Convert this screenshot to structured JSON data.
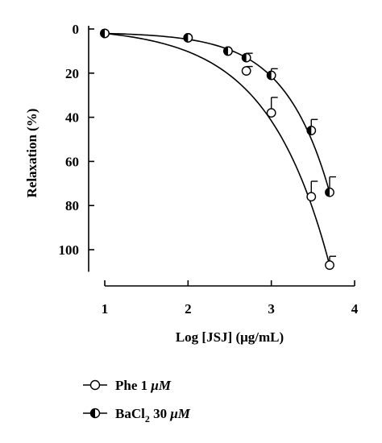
{
  "chart_data": {
    "type": "scatter",
    "xlabel": "Log [JSJ] (μg/mL)",
    "ylabel": "Relaxation (%)",
    "xlim": [
      1,
      4
    ],
    "ylim": [
      0,
      110
    ],
    "y_inverted": true,
    "x_ticks": [
      "1",
      "2",
      "3",
      "4"
    ],
    "y_ticks": [
      "0",
      "20",
      "40",
      "60",
      "80",
      "100"
    ],
    "grid": false,
    "legend_position": "bottom-left",
    "legend": [
      {
        "marker": "open-circle",
        "prefix": "Phe 1 ",
        "unit": "μM"
      },
      {
        "marker": "half-filled-circle",
        "prefix": "BaCl",
        "sub": "2",
        "mid": " 30 ",
        "unit": "μM"
      }
    ],
    "series": [
      {
        "name": "Phe 1 μM",
        "marker": "open-circle",
        "x": [
          1.0,
          2.0,
          2.48,
          2.7,
          3.0,
          3.48,
          3.7
        ],
        "y": [
          2,
          4,
          10,
          19,
          38,
          76,
          107
        ],
        "error": [
          0,
          0,
          0,
          2,
          7,
          7,
          4
        ],
        "curve_k": 1.33
      },
      {
        "name": "BaCl2 30 μM",
        "marker": "half-filled-circle",
        "x": [
          1.0,
          2.0,
          2.48,
          2.7,
          3.0,
          3.48,
          3.7
        ],
        "y": [
          2,
          4,
          10,
          13,
          21,
          46,
          74
        ],
        "error": [
          0,
          0,
          0,
          2,
          3,
          5,
          7
        ],
        "curve_k": 1.84
      }
    ]
  }
}
